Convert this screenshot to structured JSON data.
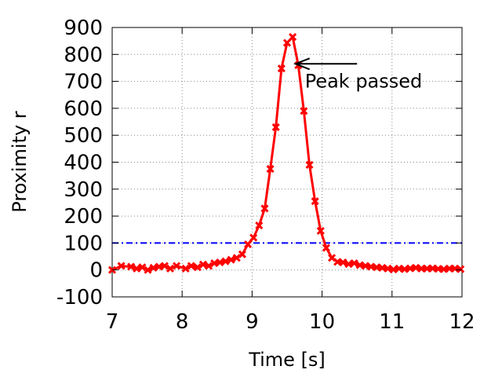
{
  "chart_data": {
    "type": "line",
    "xlabel": "Time [s]",
    "ylabel": "Proximity r",
    "xlim": [
      7,
      12
    ],
    "ylim": [
      -100,
      900
    ],
    "xticks": [
      7,
      8,
      9,
      10,
      11,
      12
    ],
    "yticks": [
      -100,
      0,
      100,
      200,
      300,
      400,
      500,
      600,
      700,
      800,
      900
    ],
    "grid": true,
    "legend": "none",
    "series": [
      {
        "color": "#ff0000",
        "marker": "x",
        "x": [
          7.0,
          7.13,
          7.27,
          7.35,
          7.43,
          7.51,
          7.59,
          7.67,
          7.75,
          7.83,
          7.92,
          8.05,
          8.13,
          8.22,
          8.3,
          8.38,
          8.46,
          8.54,
          8.62,
          8.7,
          8.78,
          8.86,
          8.94,
          9.02,
          9.1,
          9.18,
          9.26,
          9.34,
          9.42,
          9.5,
          9.58,
          9.66,
          9.74,
          9.82,
          9.9,
          9.98,
          10.06,
          10.14,
          10.22,
          10.3,
          10.38,
          10.46,
          10.54,
          10.62,
          10.7,
          10.78,
          10.86,
          10.94,
          11.02,
          11.1,
          11.18,
          11.26,
          11.34,
          11.42,
          11.5,
          11.58,
          11.66,
          11.74,
          11.82,
          11.9,
          11.98
        ],
        "y": [
          0,
          15,
          12,
          5,
          10,
          0,
          8,
          12,
          15,
          5,
          15,
          5,
          15,
          10,
          20,
          15,
          25,
          28,
          32,
          38,
          45,
          58,
          95,
          120,
          165,
          228,
          375,
          530,
          748,
          843,
          865,
          760,
          590,
          390,
          255,
          145,
          82,
          45,
          30,
          28,
          22,
          25,
          18,
          15,
          12,
          10,
          8,
          5,
          2,
          5,
          3,
          6,
          8,
          5,
          5,
          6,
          4,
          3,
          5,
          5,
          3
        ]
      }
    ],
    "reference_lines": [
      {
        "y": 100,
        "color": "#0000ff",
        "style": "dash-dot"
      }
    ],
    "annotations": [
      {
        "text": "Peak passed",
        "arrow_to_x": 9.62,
        "arrow_to_y": 765,
        "arrow_from_x": 10.5,
        "arrow_from_y": 765
      }
    ]
  }
}
